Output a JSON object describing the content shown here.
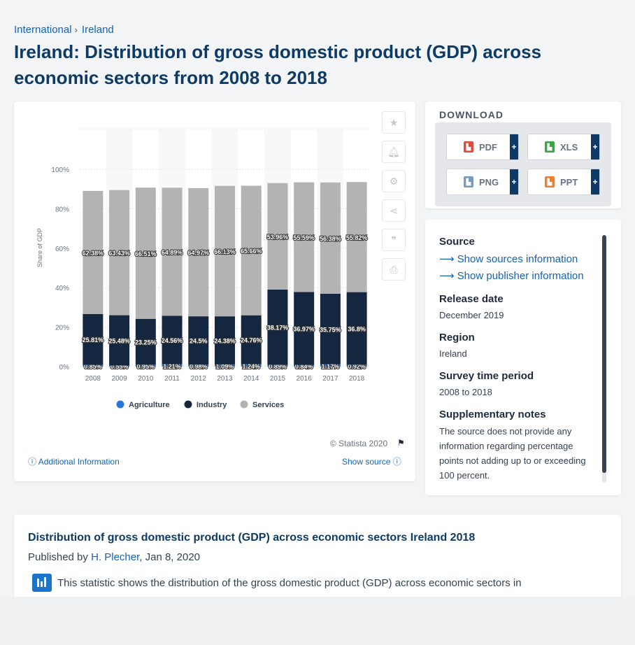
{
  "breadcrumb": [
    "International",
    "Ireland"
  ],
  "title": "Ireland: Distribution of gross domestic product (GDP) across economic sectors from 2008 to 2018",
  "chart": {
    "ylabel": "Share of GDP",
    "yticks": [
      "0%",
      "20%",
      "40%",
      "60%",
      "80%",
      "100%"
    ],
    "legend": [
      "Agriculture",
      "Industry",
      "Services"
    ],
    "copyright": "© Statista 2020",
    "additional_info": "Additional Information",
    "show_source": "Show source"
  },
  "chart_data": {
    "type": "bar",
    "stacked": true,
    "categories": [
      "2008",
      "2009",
      "2010",
      "2011",
      "2012",
      "2013",
      "2014",
      "2015",
      "2016",
      "2017",
      "2018"
    ],
    "series": [
      {
        "name": "Agriculture",
        "values": [
          0.85,
          0.55,
          0.95,
          1.21,
          0.98,
          1.09,
          1.24,
          0.89,
          0.84,
          1.17,
          0.92
        ],
        "labels": [
          "0.85%",
          "0.55%",
          "0.95%",
          "1.21%",
          "0.98%",
          "1.09%",
          "1.24%",
          "0.89%",
          "0.84%",
          "1.17%",
          "0.92%"
        ],
        "color": "#2876dd"
      },
      {
        "name": "Industry",
        "values": [
          25.81,
          25.48,
          23.25,
          24.56,
          24.5,
          24.38,
          24.76,
          38.17,
          36.97,
          35.75,
          36.8
        ],
        "labels": [
          "25.81%",
          "25.48%",
          "23.25%",
          "24.56%",
          "24.5%",
          "24.38%",
          "24.76%",
          "38.17%",
          "36.97%",
          "35.75%",
          "36.8%"
        ],
        "color": "#15263f"
      },
      {
        "name": "Services",
        "values": [
          62.38,
          63.43,
          66.51,
          64.89,
          64.97,
          66.13,
          65.66,
          53.96,
          55.59,
          56.38,
          55.82
        ],
        "labels": [
          "62.38%",
          "63.43%",
          "66.51%",
          "64.89%",
          "64.97%",
          "66.13%",
          "65.66%",
          "53.96%",
          "55.59%",
          "56.38%",
          "55.82%"
        ],
        "color": "#b3b3b3"
      }
    ],
    "ylabel": "Share of GDP",
    "ylim": [
      0,
      100
    ],
    "legend": "bottom"
  },
  "download": {
    "title": "DOWNLOAD",
    "buttons": [
      "PDF",
      "XLS",
      "PNG",
      "PPT"
    ]
  },
  "source": {
    "heading": "Source",
    "sources_link": "Show sources information",
    "publisher_link": "Show publisher information",
    "release_label": "Release date",
    "release_value": "December 2019",
    "region_label": "Region",
    "region_value": "Ireland",
    "period_label": "Survey time period",
    "period_value": "2008 to 2018",
    "notes_label": "Supplementary notes",
    "notes_value": "The source does not provide any information regarding percentage points not adding up to or exceeding 100 percent."
  },
  "description": {
    "title": "Distribution of gross domestic product (GDP) across economic sectors Ireland 2018",
    "published_prefix": "Published by",
    "author": "H. Plecher",
    "date": ", Jan 8, 2020",
    "text": "This statistic shows the distribution of the gross domestic product (GDP) across economic sectors in"
  }
}
